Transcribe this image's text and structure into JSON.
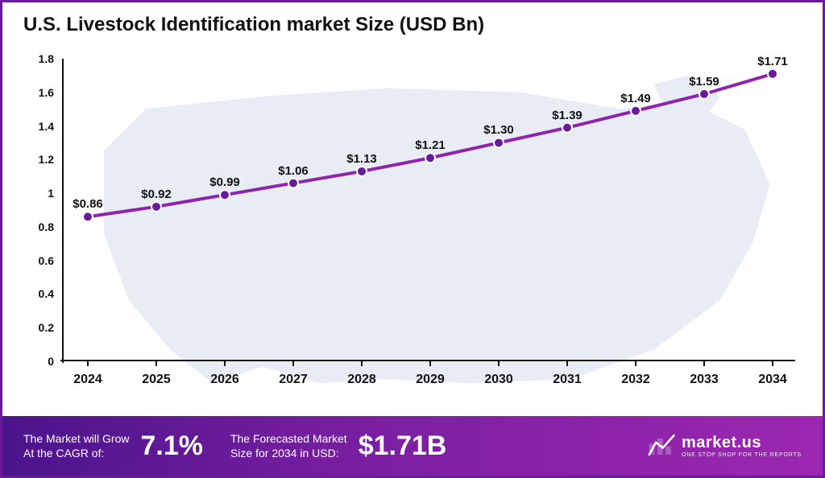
{
  "title": "U.S. Livestock Identification market Size (USD Bn)",
  "chart": {
    "type": "line",
    "years": [
      2024,
      2025,
      2026,
      2027,
      2028,
      2029,
      2030,
      2031,
      2032,
      2033,
      2034
    ],
    "values": [
      0.86,
      0.92,
      0.99,
      1.06,
      1.13,
      1.21,
      1.3,
      1.39,
      1.49,
      1.59,
      1.71
    ],
    "value_labels": [
      "$0.86",
      "$0.92",
      "$0.99",
      "$1.06",
      "$1.13",
      "$1.21",
      "$1.30",
      "$1.39",
      "$1.49",
      "$1.59",
      "$1.71"
    ],
    "ylim": [
      0,
      1.8
    ],
    "yticks": [
      0,
      0.2,
      0.4,
      0.6,
      0.8,
      1,
      1.2,
      1.4,
      1.6,
      1.8
    ],
    "line_color": "#8e24aa",
    "line_width": 4,
    "marker_fill": "#6a1b9a",
    "marker_stroke": "#ffffff",
    "marker_radius": 6,
    "axis_color": "#111111",
    "tick_font_weight": "700",
    "label_fontsize": 15,
    "map_bg_color": "#e6ecf5",
    "background_color": "#ffffff"
  },
  "footer": {
    "label1_line1": "The Market will Grow",
    "label1_line2": "At the CAGR of:",
    "value1": "7.1%",
    "label2_line1": "The Forecasted Market",
    "label2_line2": "Size for 2034 in USD:",
    "value2": "$1.71B",
    "brand_name": "market.us",
    "brand_tag": "ONE STOP SHOP FOR THE REPORTS",
    "gradient_from": "#4a148c",
    "gradient_to": "#9c27b0"
  },
  "frame_border_color": "#6a1b9a"
}
